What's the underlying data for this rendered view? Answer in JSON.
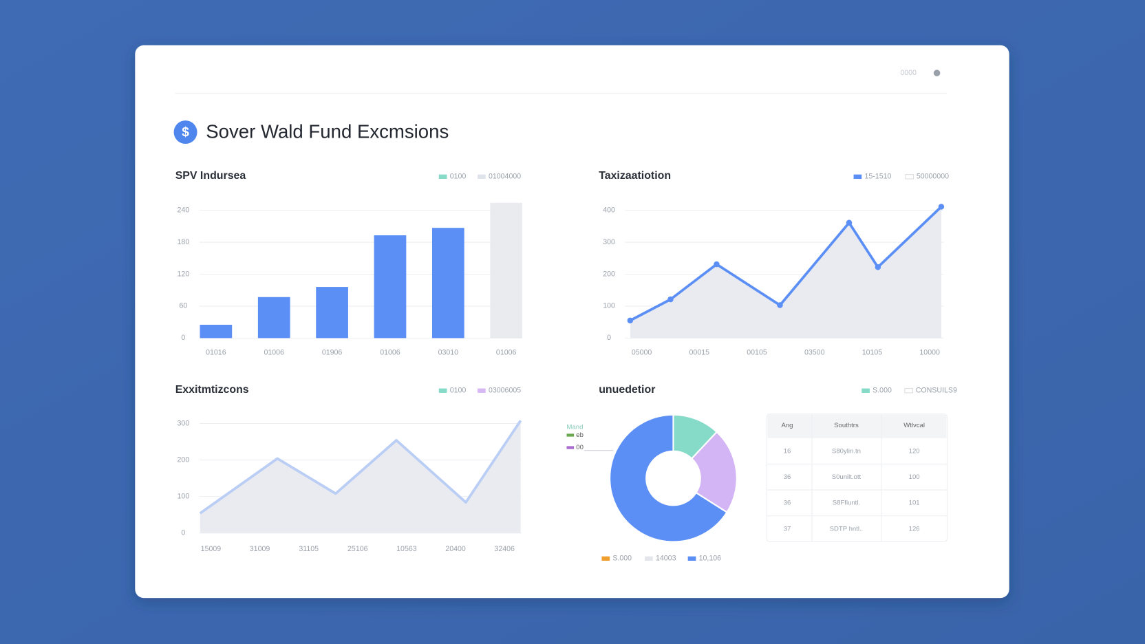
{
  "header": {
    "icon": "$",
    "title": "Sover Wald Fund Excmsions",
    "status": "0000"
  },
  "chart_data": [
    {
      "type": "bar",
      "title": "SPV Indursea",
      "legend": [
        {
          "name": "0100",
          "color": "#86dbc8"
        },
        {
          "name": "01004000",
          "color": "#dfe3ea"
        }
      ],
      "categories": [
        "01016",
        "01006",
        "01906",
        "01006",
        "03010",
        "01006"
      ],
      "values": [
        25,
        77,
        96,
        193,
        207,
        254
      ],
      "colors": [
        "#5b8ff5",
        "#5b8ff5",
        "#5b8ff5",
        "#5b8ff5",
        "#5b8ff5",
        "#e9ebef"
      ],
      "ylim": [
        0,
        240
      ],
      "yticks": [
        0,
        60,
        120,
        180,
        240
      ],
      "grid": true
    },
    {
      "type": "line",
      "title": "Taxizaatiotion",
      "legend": [
        {
          "name": "15-1510",
          "color": "#5b8ff5"
        },
        {
          "name": "50000000",
          "color": "#ffffff"
        }
      ],
      "x": [
        -0.2,
        0.5,
        1.3,
        2.4,
        3.6,
        4.1,
        5.2
      ],
      "values": [
        55,
        121,
        231,
        103,
        361,
        222,
        411
      ],
      "color": "#5b8ff5",
      "area": true,
      "markers": true,
      "xlim": [
        -0.2,
        5.2
      ],
      "xticks": [
        {
          "value": 0,
          "label": "05000"
        },
        {
          "value": 1,
          "label": "00015"
        },
        {
          "value": 2,
          "label": "00105"
        },
        {
          "value": 3,
          "label": "03500"
        },
        {
          "value": 4,
          "label": "10105"
        },
        {
          "value": 5,
          "label": "10000"
        }
      ],
      "ylim": [
        0,
        400
      ],
      "yticks": [
        0,
        100,
        200,
        300,
        400
      ],
      "grid": true
    },
    {
      "type": "line",
      "title": "Exxitmtizcons",
      "legend": [
        {
          "name": "0100",
          "color": "#86dbc8"
        },
        {
          "name": "03006005",
          "color": "#d7b8f5"
        }
      ],
      "x": [
        -0.22,
        1.36,
        2.55,
        3.79,
        5.21,
        6.33
      ],
      "values": [
        54,
        204,
        108,
        254,
        84,
        308
      ],
      "color": "#b9cdf5",
      "area": true,
      "markers": false,
      "xlim": [
        -0.22,
        6.33
      ],
      "xticks": [
        {
          "value": 0,
          "label": "15009"
        },
        {
          "value": 1,
          "label": "31009"
        },
        {
          "value": 2,
          "label": "31105"
        },
        {
          "value": 3,
          "label": "25106"
        },
        {
          "value": 4,
          "label": "10563"
        },
        {
          "value": 5,
          "label": "20400"
        },
        {
          "value": 6,
          "label": "32406"
        }
      ],
      "ylim": [
        0,
        300
      ],
      "yticks": [
        0,
        100,
        200,
        300
      ],
      "grid": true
    },
    {
      "type": "pie",
      "title": "unuedetior",
      "legend": [
        {
          "name": "S.000",
          "color": "#86dbc8"
        },
        {
          "name": "CONSUILS9",
          "color": "#ffffff"
        }
      ],
      "values": [
        12,
        22,
        66
      ],
      "colors": [
        "#86dbc8",
        "#d3b4f5",
        "#5b8ff5"
      ],
      "callout_title": "Mand",
      "callout": [
        {
          "name": "eb",
          "color": "#6aa84f"
        },
        {
          "name": "00",
          "color": "#a86bd0"
        }
      ],
      "bottom_legend": [
        {
          "name": "S.000",
          "color": "#f0a030"
        },
        {
          "name": "14003",
          "color": "#e3e6eb"
        },
        {
          "name": "10,106",
          "color": "#5b8ff5"
        }
      ]
    }
  ],
  "table": {
    "header": [
      "Ang",
      "Southtrs",
      "Wtlvcal"
    ],
    "rows": [
      [
        "16",
        "S80ylin.tn",
        "120"
      ],
      [
        "36",
        "S0unilt.ott",
        "100"
      ],
      [
        "36",
        "S8Ffiuntl.",
        "101"
      ],
      [
        "37",
        "SDTP hntl..",
        "126"
      ]
    ]
  }
}
